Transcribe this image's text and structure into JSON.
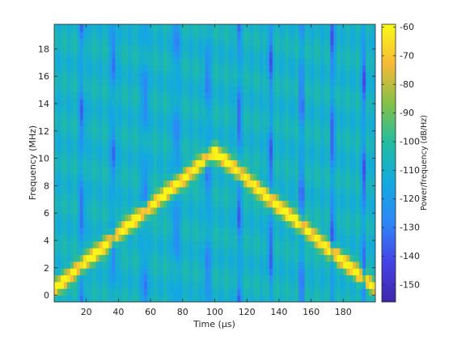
{
  "chart_data": {
    "type": "heatmap",
    "title": "",
    "xlabel": "Time (µs)",
    "ylabel": "Frequency (MHz)",
    "colorbar_label": "Power/frequency (dB/Hz)",
    "xlim": [
      0,
      200
    ],
    "ylim": [
      -0.5,
      19.8
    ],
    "clim": [
      -156,
      -59
    ],
    "x_ticks": [
      20,
      40,
      60,
      80,
      100,
      120,
      140,
      160,
      180
    ],
    "y_ticks": [
      0,
      2,
      4,
      6,
      8,
      10,
      12,
      14,
      16,
      18
    ],
    "colorbar_ticks": [
      -60,
      -70,
      -80,
      -90,
      -100,
      -110,
      -120,
      -130,
      -140,
      -150
    ],
    "colormap": "parula",
    "colormap_stops": [
      "#3e26a8",
      "#4543e5",
      "#2e87f7",
      "#13a9e0",
      "#21bca1",
      "#84c047",
      "#f6ba38",
      "#f9fa14"
    ],
    "grid": false,
    "background_level_db": -108,
    "signal": {
      "description_of_shape": "V-shaped chirp",
      "ridge_points": [
        {
          "time_us": 0,
          "freq_mhz": 0.5
        },
        {
          "time_us": 100,
          "freq_mhz": 10.5
        },
        {
          "time_us": 200,
          "freq_mhz": 0.5
        }
      ],
      "peak_level_db": -60
    }
  }
}
